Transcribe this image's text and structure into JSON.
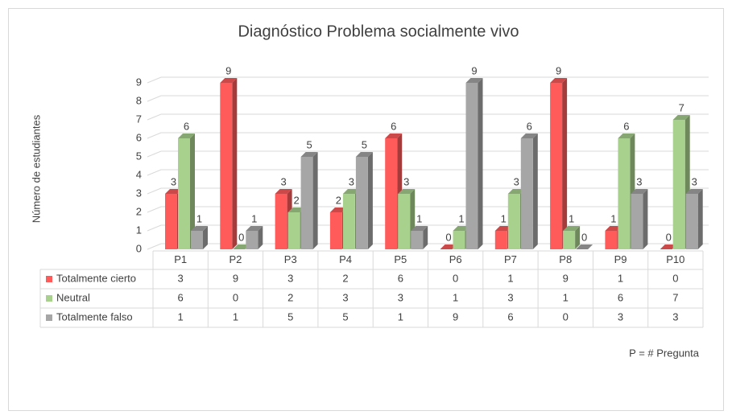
{
  "chart_data": {
    "type": "bar",
    "title": "Diagnóstico Problema socialmente vivo",
    "y_label": "Número de estudiantes",
    "annotation": "P = # Pregunta",
    "categories": [
      "P1",
      "P2",
      "P3",
      "P4",
      "P5",
      "P6",
      "P7",
      "P8",
      "P9",
      "P10"
    ],
    "series": [
      {
        "name": "Totalmente cierto",
        "color": "#ff5b5b",
        "values": [
          3,
          9,
          3,
          2,
          6,
          0,
          1,
          9,
          1,
          0
        ]
      },
      {
        "name": "Neutral",
        "color": "#a9d18e",
        "values": [
          6,
          0,
          2,
          3,
          3,
          1,
          3,
          1,
          6,
          7
        ]
      },
      {
        "name": "Totalmente falso",
        "color": "#a6a6a6",
        "values": [
          1,
          1,
          5,
          5,
          1,
          9,
          6,
          0,
          3,
          3
        ]
      }
    ],
    "ylim": [
      0,
      9
    ],
    "yticks": [
      0,
      1,
      2,
      3,
      4,
      5,
      6,
      7,
      8,
      9
    ],
    "grid": true,
    "data_table": true
  }
}
